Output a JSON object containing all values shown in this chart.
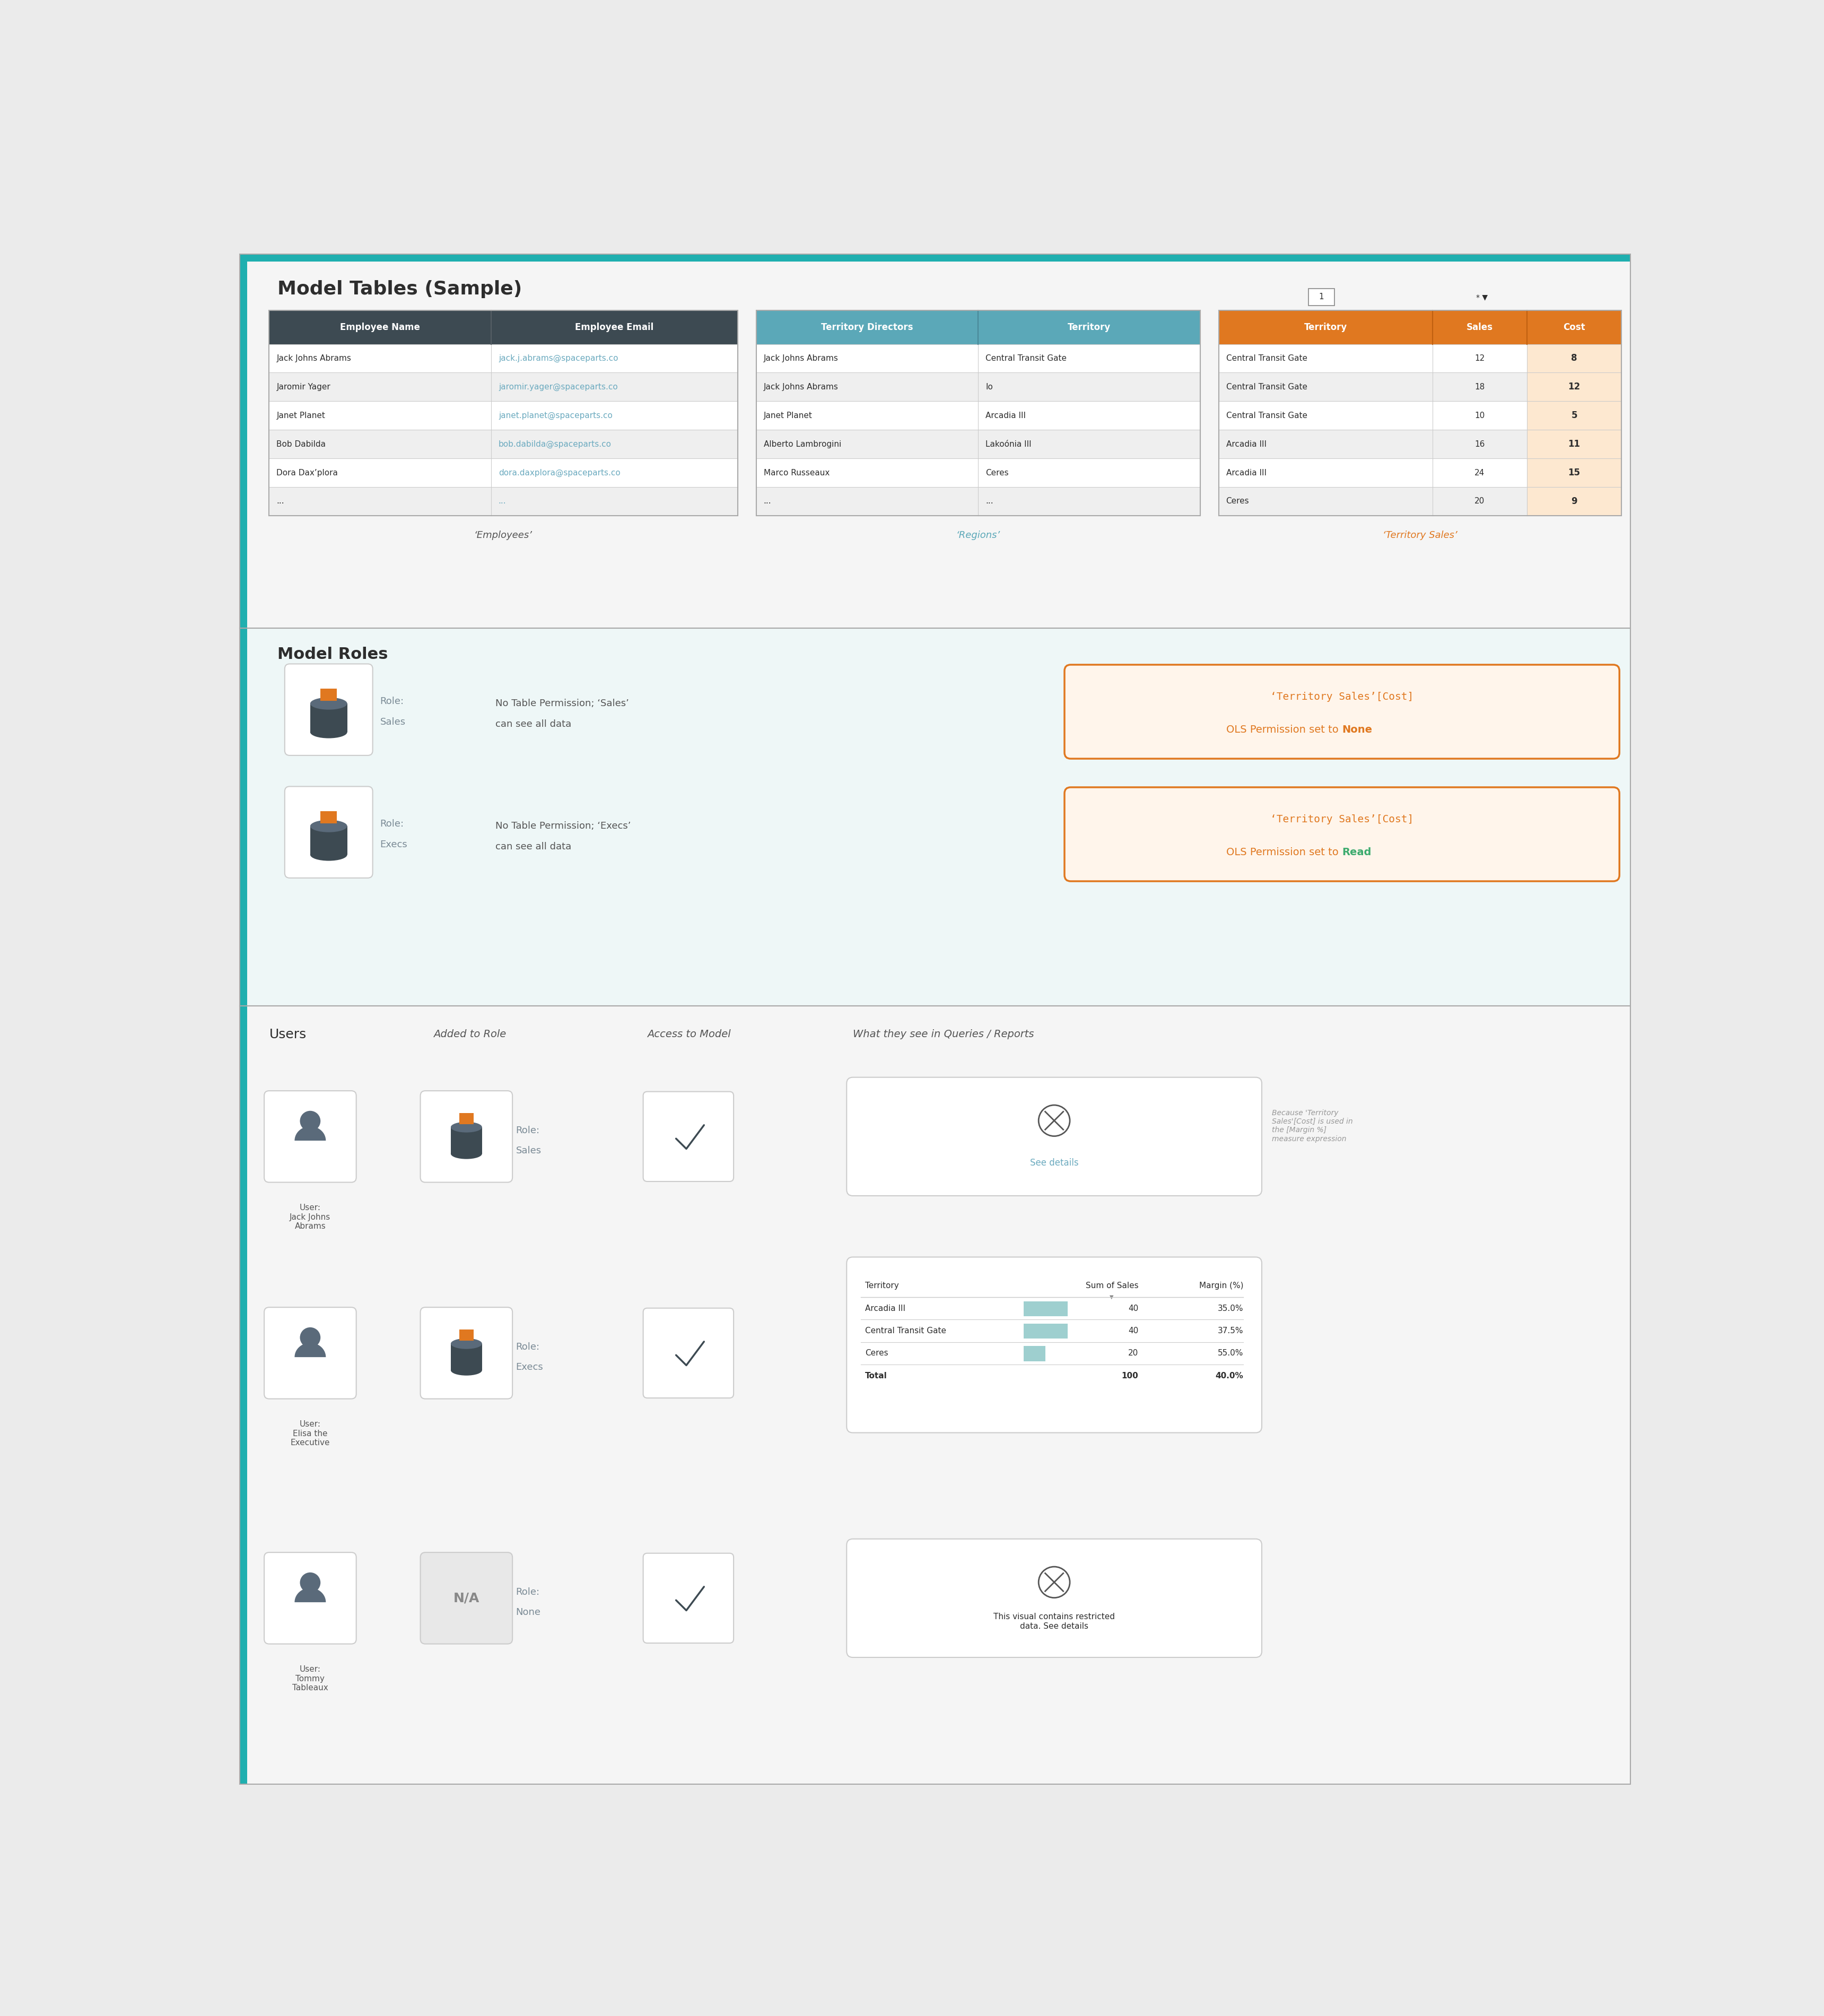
{
  "title_section": "Model Tables (Sample)",
  "bg_color": "#ebebeb",
  "top_bar_color": "#1fafaf",
  "section1_bg": "#f5f5f5",
  "section2_bg": "#eef7f7",
  "section3_bg": "#f5f5f5",
  "emp_table_header_bg": "#3d4a52",
  "emp_header_cols": [
    "Employee Name",
    "Employee Email"
  ],
  "emp_rows": [
    [
      "Jack Johns Abrams",
      "jack.j.abrams@spaceparts.co"
    ],
    [
      "Jaromir Yager",
      "jaromir.yager@spaceparts.co"
    ],
    [
      "Janet Planet",
      "janet.planet@spaceparts.co"
    ],
    [
      "Bob Dabilda",
      "bob.dabilda@spaceparts.co"
    ],
    [
      "Dora Dax’plora",
      "dora.daxplora@spaceparts.co"
    ],
    [
      "...",
      "..."
    ]
  ],
  "emp_label": "‘Employees’",
  "reg_table_header_bg": "#5ba8b8",
  "reg_header_cols": [
    "Territory Directors",
    "Territory"
  ],
  "reg_rows": [
    [
      "Jack Johns Abrams",
      "Central Transit Gate"
    ],
    [
      "Jack Johns Abrams",
      "Io"
    ],
    [
      "Janet Planet",
      "Arcadia III"
    ],
    [
      "Alberto Lambrogini",
      "Lakoónia III"
    ],
    [
      "Marco Russeaux",
      "Ceres"
    ],
    [
      "...",
      "..."
    ]
  ],
  "reg_label": "‘Regions’",
  "ts_table_header_bg": "#e07820",
  "ts_header_cols": [
    "Territory",
    "Sales",
    "Cost"
  ],
  "ts_rows": [
    [
      "Central Transit Gate",
      "12",
      "8"
    ],
    [
      "Central Transit Gate",
      "18",
      "12"
    ],
    [
      "Central Transit Gate",
      "10",
      "5"
    ],
    [
      "Arcadia III",
      "16",
      "11"
    ],
    [
      "Arcadia III",
      "24",
      "15"
    ],
    [
      "Ceres",
      "20",
      "9"
    ]
  ],
  "ts_label": "‘Territory Sales’",
  "roles_title": "Model Roles",
  "role1_name": "Role:\nSales",
  "role1_desc": "No Table Permission; ‘Sales’\ncan see all data",
  "role2_name": "Role:\nExecs",
  "role2_desc": "No Table Permission; ‘Execs’\ncan see all data",
  "users_title": "Users",
  "added_title": "Added to Role",
  "access_title": "Access to Model",
  "queries_title": "What they see in Queries / Reports",
  "user1_name": "User:\nJack Johns\nAbrams",
  "user1_role": "Role:\nSales",
  "user2_name": "User:\nElisa the\nExecutive",
  "user2_role": "Role:\nExecs",
  "user3_name": "User:\nTommy\nTableaux",
  "user3_role": "Role:\nNone",
  "table_data": {
    "headers": [
      "Territory",
      "Sum of Sales",
      "Margin (%)"
    ],
    "rows": [
      [
        "Arcadia III",
        "40",
        "35.0%"
      ],
      [
        "Central Transit Gate",
        "40",
        "37.5%"
      ],
      [
        "Ceres",
        "20",
        "55.0%"
      ],
      [
        "Total",
        "100",
        "40.0%"
      ]
    ]
  },
  "link_color": "#6baabf",
  "teal_color": "#1fafaf",
  "orange_color": "#e07820",
  "green_color": "#3dab6e",
  "dark_header": "#3d4a52",
  "box_border_color": "#cccccc"
}
